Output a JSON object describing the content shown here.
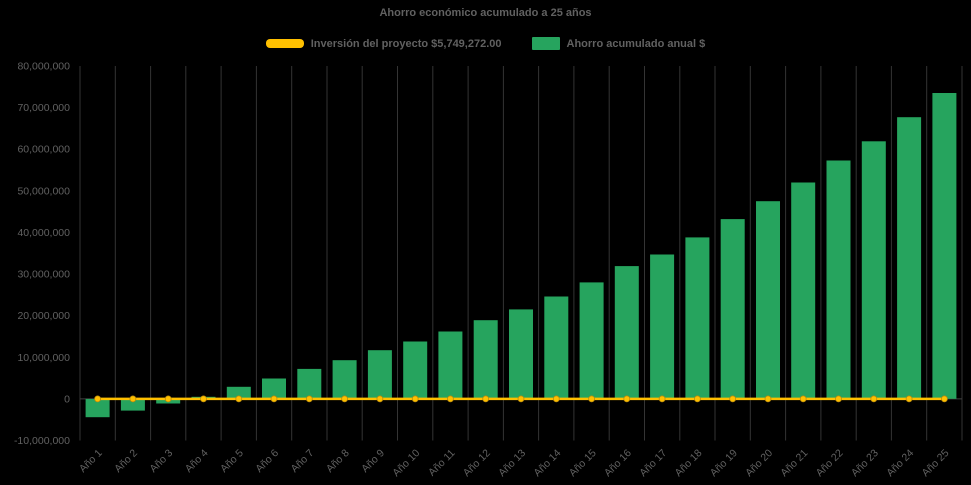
{
  "chart": {
    "title": "Ahorro económico acumulado a 25 años",
    "background": "#000000",
    "text_color": "#616161",
    "gridline_color": "#343434",
    "legend_items": [
      {
        "label": "Inversión del proyecto $5,749,272.00"
      },
      {
        "label": "Ahorro acumulado anual $"
      }
    ]
  },
  "chart_data": {
    "type": "bar",
    "title": "Ahorro económico acumulado a 25 años",
    "categories": [
      "Año 1",
      "Año 2",
      "Año 3",
      "Año 4",
      "Año 5",
      "Año 6",
      "Año 7",
      "Año 8",
      "Año 9",
      "Año 10",
      "Año 11",
      "Año 12",
      "Año 13",
      "Año 14",
      "Año 15",
      "Año 16",
      "Año 17",
      "Año 18",
      "Año 19",
      "Año 20",
      "Año 21",
      "Año 22",
      "Año 23",
      "Año 24",
      "Año 25"
    ],
    "series": [
      {
        "name": "Inversión del proyecto $5,749,272.00",
        "type": "line",
        "color": "#FFC000",
        "marker": "circle",
        "values": [
          0,
          0,
          0,
          0,
          0,
          0,
          0,
          0,
          0,
          0,
          0,
          0,
          0,
          0,
          0,
          0,
          0,
          0,
          0,
          0,
          0,
          0,
          0,
          0,
          0
        ]
      },
      {
        "name": "Ahorro acumulado anual $",
        "type": "bar",
        "color": "#26A45E",
        "values": [
          -4400000,
          -2800000,
          -1100000,
          500000,
          2900000,
          4900000,
          7200000,
          9300000,
          11700000,
          13800000,
          16200000,
          18900000,
          21500000,
          24600000,
          28000000,
          31900000,
          34700000,
          38800000,
          43200000,
          47500000,
          52000000,
          57300000,
          61900000,
          67700000,
          73500000
        ]
      }
    ],
    "ylim": [
      -10000000,
      80000000
    ],
    "ytick_interval": 10000000,
    "xlabel": "",
    "ylabel": "",
    "legend_position": "top",
    "grid": "vertical",
    "x_label_rotation": -45
  }
}
